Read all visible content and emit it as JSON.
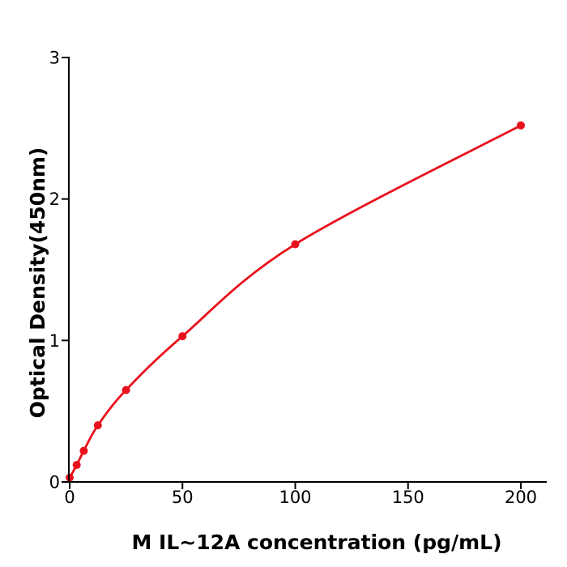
{
  "figure": {
    "background": "#ffffff"
  },
  "chart_data": {
    "type": "line",
    "title": "",
    "xlabel": "M  IL~12A concentration (pg/mL)",
    "ylabel": "Optical Density(450nm)",
    "x": [
      0,
      3.125,
      6.25,
      12.5,
      25,
      50,
      100,
      200
    ],
    "y": [
      0.03,
      0.12,
      0.22,
      0.4,
      0.65,
      1.03,
      1.68,
      2.52
    ],
    "xticks": [
      0,
      50,
      100,
      150,
      200
    ],
    "yticks": [
      0,
      1,
      2,
      3
    ],
    "xlim": [
      0,
      211
    ],
    "ylim": [
      0,
      3
    ],
    "grid": false,
    "legend": "none",
    "line_color": "#e8121d",
    "marker_color": "#e8121d",
    "marker": "circle",
    "axis_color": "#000000",
    "text_color": "#000000"
  }
}
